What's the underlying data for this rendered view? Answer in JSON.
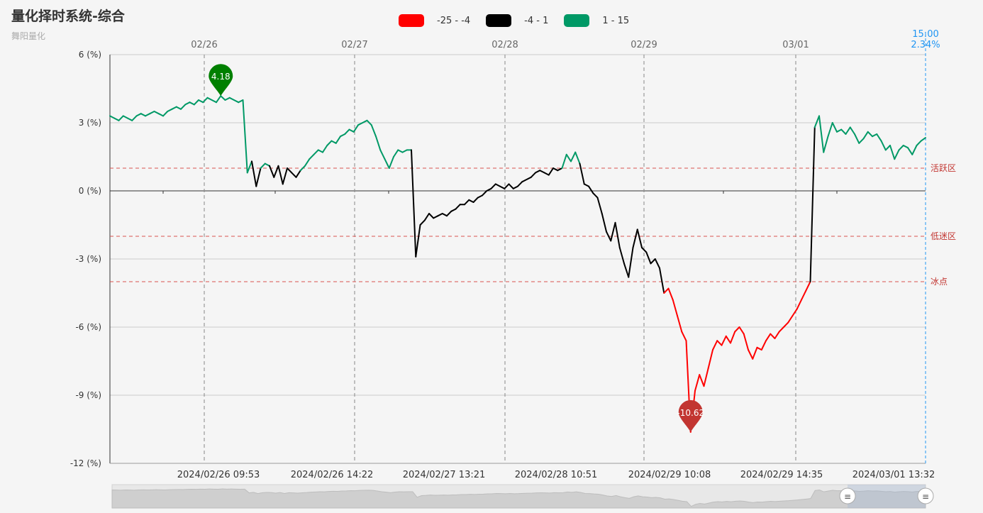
{
  "header": {
    "title": "量化择时系统-综合",
    "subtitle": "舞阳量化"
  },
  "chart_data": {
    "type": "line",
    "title": "量化择时系统-综合",
    "subtitle": "舞阳量化",
    "ylim": [
      -12,
      6
    ],
    "y_ticks": [
      6,
      3,
      0,
      -3,
      -6,
      -9,
      -12
    ],
    "y_tick_format": "{v} (%)",
    "top_date_labels": [
      "02/26",
      "02/27",
      "02/28",
      "02/29",
      "03/01"
    ],
    "bottom_time_labels": [
      "2024/02/26 09:53",
      "2024/02/26 14:22",
      "2024/02/27 13:21",
      "2024/02/28 10:51",
      "2024/02/29 10:08",
      "2024/02/29 14:35",
      "2024/03/01 13:32"
    ],
    "visual_map": [
      {
        "label": "-25 - -4",
        "min": -25,
        "max": -4,
        "color": "#ff0000"
      },
      {
        "label": "-4 - 1",
        "min": -4,
        "max": 1,
        "color": "#000000"
      },
      {
        "label": "1 - 15",
        "min": 1,
        "max": 15,
        "color": "#009966"
      }
    ],
    "mark_lines": [
      {
        "value": 1,
        "label": "活跃区",
        "color": "#d9534f"
      },
      {
        "value": -2,
        "label": "低迷区",
        "color": "#d9534f"
      },
      {
        "value": -4,
        "label": "冰点",
        "color": "#d9534f"
      }
    ],
    "mark_points": [
      {
        "type": "max",
        "value": 4.18,
        "label": "4.18",
        "color": "#008000"
      },
      {
        "type": "min",
        "value": -10.62,
        "label": "-10.62",
        "color": "#c23531"
      }
    ],
    "tooltip_pointer": {
      "time": "15:00",
      "value_label": "2.34%"
    },
    "series": [
      {
        "name": "综合",
        "values": [
          3.3,
          3.2,
          3.1,
          3.3,
          3.2,
          3.1,
          3.3,
          3.4,
          3.3,
          3.4,
          3.5,
          3.4,
          3.3,
          3.5,
          3.6,
          3.7,
          3.6,
          3.8,
          3.9,
          3.8,
          4.0,
          3.9,
          4.1,
          4.0,
          3.9,
          4.18,
          4.0,
          4.1,
          4.0,
          3.9,
          4.0,
          0.8,
          1.3,
          0.2,
          1.0,
          1.2,
          1.1,
          0.6,
          1.1,
          0.3,
          1.0,
          0.8,
          0.6,
          0.9,
          1.1,
          1.4,
          1.6,
          1.8,
          1.7,
          2.0,
          2.2,
          2.1,
          2.4,
          2.5,
          2.7,
          2.6,
          2.9,
          3.0,
          3.1,
          2.9,
          2.4,
          1.8,
          1.4,
          1.0,
          1.5,
          1.8,
          1.7,
          1.8,
          1.8,
          -2.9,
          -1.5,
          -1.3,
          -1.0,
          -1.2,
          -1.1,
          -1.0,
          -1.1,
          -0.9,
          -0.8,
          -0.6,
          -0.6,
          -0.4,
          -0.5,
          -0.3,
          -0.2,
          0.0,
          0.1,
          0.3,
          0.2,
          0.1,
          0.3,
          0.1,
          0.2,
          0.4,
          0.5,
          0.6,
          0.8,
          0.9,
          0.8,
          0.7,
          1.0,
          0.9,
          1.0,
          1.6,
          1.3,
          1.7,
          1.2,
          0.3,
          0.2,
          -0.1,
          -0.3,
          -1.0,
          -1.8,
          -2.2,
          -1.4,
          -2.5,
          -3.2,
          -3.8,
          -2.5,
          -1.7,
          -2.5,
          -2.7,
          -3.2,
          -3.0,
          -3.4,
          -4.5,
          -4.3,
          -4.8,
          -5.5,
          -6.2,
          -6.6,
          -10.62,
          -8.8,
          -8.1,
          -8.6,
          -7.8,
          -7.0,
          -6.6,
          -6.8,
          -6.4,
          -6.7,
          -6.2,
          -6.0,
          -6.3,
          -7.0,
          -7.4,
          -6.9,
          -7.0,
          -6.6,
          -6.3,
          -6.5,
          -6.2,
          -6.0,
          -5.8,
          -5.5,
          -5.2,
          -4.8,
          -4.4,
          -4.0,
          2.8,
          3.3,
          1.7,
          2.4,
          3.0,
          2.6,
          2.7,
          2.5,
          2.8,
          2.5,
          2.1,
          2.3,
          2.6,
          2.4,
          2.5,
          2.2,
          1.8,
          2.0,
          1.4,
          1.8,
          2.0,
          1.9,
          1.6,
          2.0,
          2.2,
          2.34
        ]
      }
    ]
  }
}
